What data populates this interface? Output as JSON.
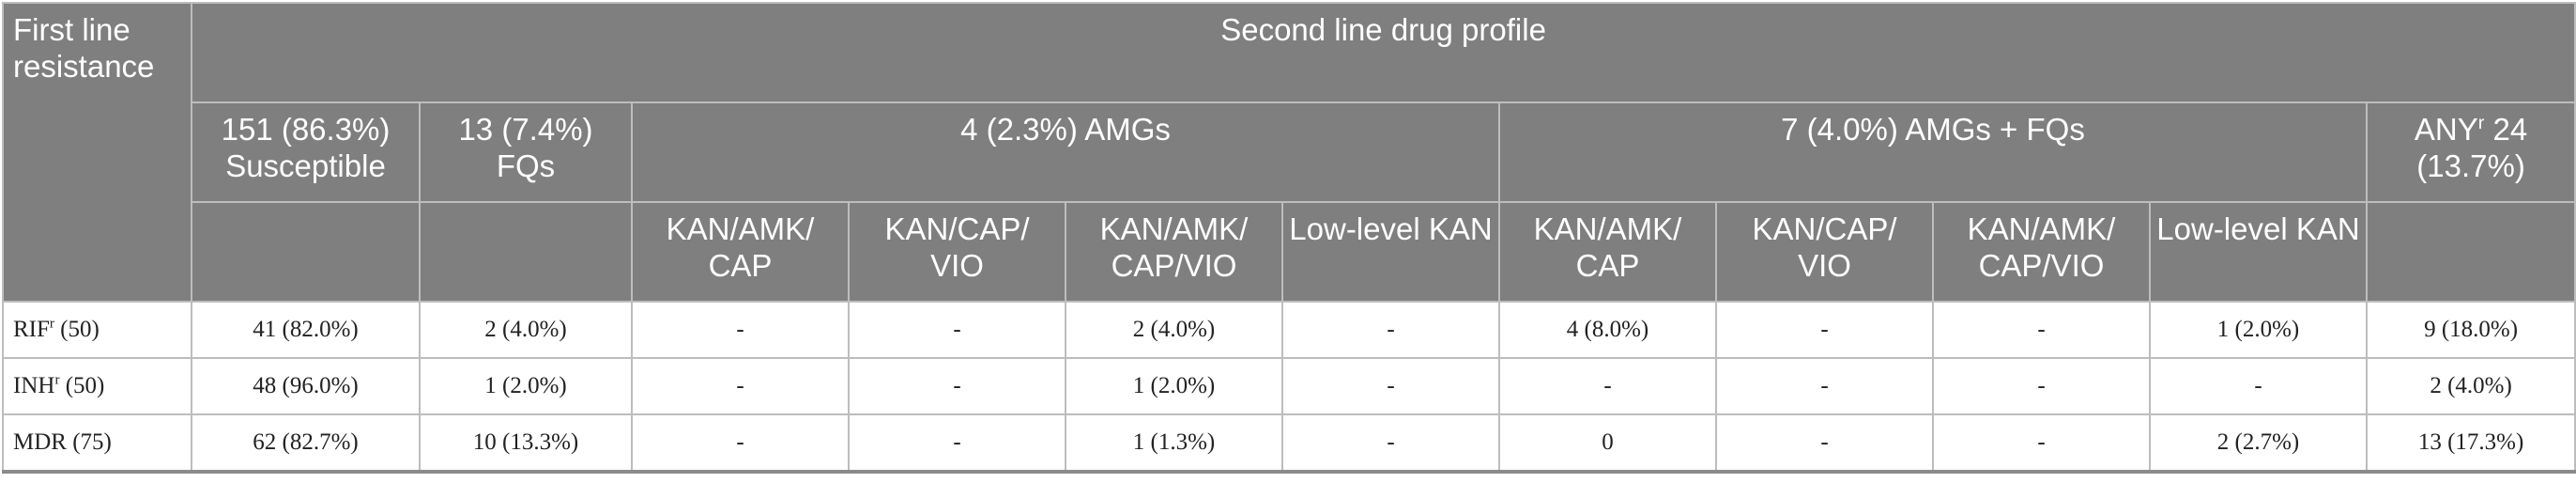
{
  "headers": {
    "first_line": "First line resistance",
    "second_line": "Second line drug profile",
    "groups": {
      "susceptible": "151 (86.3%) Susceptible",
      "fqs": "13 (7.4%) FQs",
      "amgs": "4 (2.3%) AMGs",
      "amgs_fqs": "7 (4.0%) AMGs + FQs",
      "any_prefix": "ANY",
      "any_sup": "r",
      "any_suffix": " 24 (13.7%)"
    },
    "subcolumns": {
      "amgs": [
        "KAN/AMK/ CAP",
        "KAN/CAP/ VIO",
        "KAN/AMK/ CAP/VIO",
        "Low-level KAN"
      ],
      "amgs_fqs": [
        "KAN/AMK/ CAP",
        "KAN/CAP/ VIO",
        "KAN/AMK/ CAP/VIO",
        "Low-level KAN"
      ]
    }
  },
  "rows": [
    {
      "label": "RIF",
      "label_sup": "r",
      "label_suffix": " (50)",
      "cells": [
        "41 (82.0%)",
        "2 (4.0%)",
        "-",
        "-",
        "2 (4.0%)",
        "-",
        "4 (8.0%)",
        "-",
        "-",
        "1 (2.0%)",
        "9 (18.0%)"
      ]
    },
    {
      "label": "INH",
      "label_sup": "r",
      "label_suffix": " (50)",
      "cells": [
        "48 (96.0%)",
        "1 (2.0%)",
        "-",
        "-",
        "1 (2.0%)",
        "-",
        "-",
        "-",
        "-",
        "-",
        "2 (4.0%)"
      ]
    },
    {
      "label": "MDR (75)",
      "label_sup": "",
      "label_suffix": "",
      "cells": [
        "62 (82.7%)",
        "10 (13.3%)",
        "-",
        "-",
        "1 (1.3%)",
        "-",
        "0",
        "-",
        "-",
        "2 (2.7%)",
        "13 (17.3%)"
      ]
    }
  ]
}
